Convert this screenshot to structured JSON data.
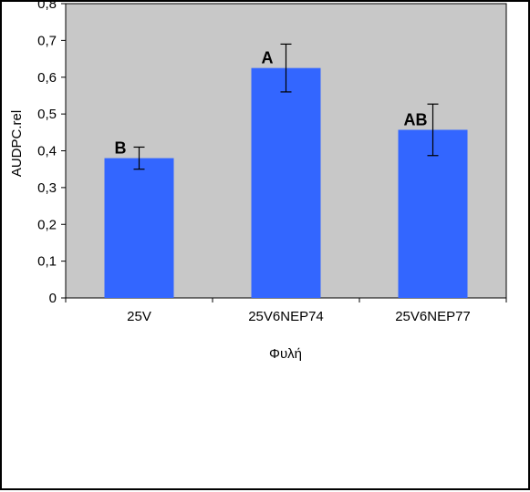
{
  "chart_data": {
    "type": "bar",
    "categories": [
      "25V",
      "25V6NEP74",
      "25V6NEP77"
    ],
    "values": [
      0.38,
      0.625,
      0.457
    ],
    "error": [
      0.03,
      0.065,
      0.07
    ],
    "significance_labels": [
      "B",
      "A",
      "AB"
    ],
    "xlabel": "Φυλή",
    "ylabel": "AUDPC.rel",
    "ylim": [
      0,
      0.8
    ],
    "yticks": [
      0,
      0.1,
      0.2,
      0.3,
      0.4,
      0.5,
      0.6,
      0.7,
      0.8
    ],
    "ytick_labels": [
      "0",
      "0,1",
      "0,2",
      "0,3",
      "0,4",
      "0,5",
      "0,6",
      "0,7",
      "0,8"
    ],
    "grid": false,
    "colors": {
      "bar": "#3366ff",
      "plot_background": "#c8c8c8",
      "error_bar": "#000000"
    }
  }
}
